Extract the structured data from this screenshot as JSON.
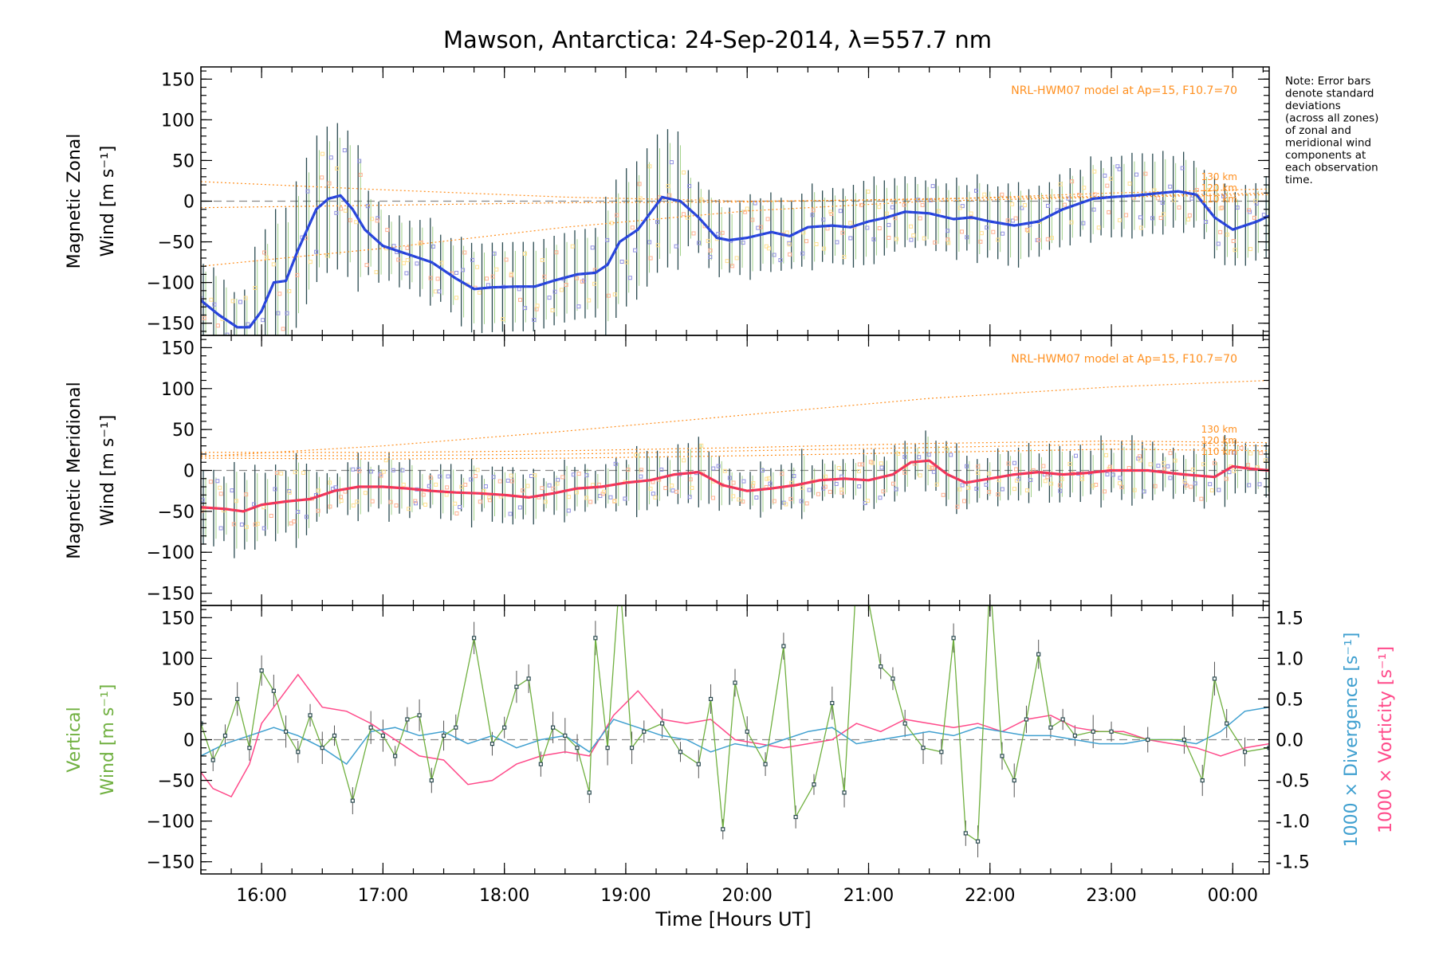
{
  "figure": {
    "title": "Mawson, Antarctica: 24-Sep-2014, λ=557.7 nm",
    "note_lines": [
      "Note: Error bars",
      "denote standard",
      "deviations",
      "(across all zones)",
      "of zonal and",
      "meridional wind",
      "components at",
      "each observation",
      "time."
    ],
    "model_label": "NRL-HWM07 model at Ap=15, F10.7=70",
    "altitude_labels": [
      "130 km",
      "120 km",
      "110 km"
    ],
    "xlabel": "Time [Hours UT]",
    "colors": {
      "zonal": "#2040e0",
      "meridional": "#ff3050",
      "vertical": "#70b040",
      "divergence": "#40a0d0",
      "vorticity": "#ff4a8a",
      "model": "#ff9020",
      "zone_points": "#9090e0"
    }
  },
  "chart_data": [
    {
      "type": "line",
      "panel": "zonal",
      "ylabel_line1": "Magnetic Zonal",
      "ylabel_line2": "Wind [m s⁻¹]",
      "xlim": [
        15.5,
        24.3
      ],
      "ylim": [
        -165,
        165
      ],
      "x_ticks": [
        16,
        17,
        18,
        19,
        20,
        21,
        22,
        23,
        24
      ],
      "x_tick_labels": [
        "16:00",
        "17:00",
        "18:00",
        "19:00",
        "20:00",
        "21:00",
        "22:00",
        "23:00",
        "00:00"
      ],
      "y_ticks": [
        -150,
        -100,
        -50,
        0,
        50,
        100,
        150
      ],
      "series": [
        {
          "role": "wind",
          "x": [
            15.5,
            15.65,
            15.8,
            15.9,
            16.0,
            16.1,
            16.2,
            16.3,
            16.45,
            16.55,
            16.65,
            16.75,
            16.85,
            17.0,
            17.2,
            17.4,
            17.6,
            17.75,
            17.9,
            18.1,
            18.25,
            18.4,
            18.6,
            18.75,
            18.85,
            18.95,
            19.1,
            19.2,
            19.3,
            19.45,
            19.6,
            19.75,
            19.85,
            20.0,
            20.2,
            20.35,
            20.5,
            20.7,
            20.85,
            21.0,
            21.15,
            21.3,
            21.5,
            21.7,
            21.85,
            22.0,
            22.2,
            22.4,
            22.6,
            22.85,
            23.0,
            23.2,
            23.4,
            23.55,
            23.7,
            23.85,
            24.0,
            24.2,
            24.3
          ],
          "y": [
            -122,
            -140,
            -155,
            -155,
            -135,
            -100,
            -98,
            -60,
            -10,
            3,
            7,
            -10,
            -35,
            -55,
            -65,
            -75,
            -95,
            -108,
            -106,
            -105,
            -105,
            -98,
            -90,
            -88,
            -78,
            -50,
            -35,
            -15,
            5,
            0,
            -20,
            -45,
            -48,
            -45,
            -38,
            -43,
            -32,
            -30,
            -32,
            -25,
            -20,
            -13,
            -15,
            -22,
            -20,
            -25,
            -30,
            -25,
            -10,
            3,
            5,
            7,
            10,
            12,
            8,
            -20,
            -35,
            -25,
            -18
          ]
        },
        {
          "role": "model",
          "name": "130 km",
          "x": [
            15.5,
            17.0,
            18.5,
            20.0,
            21.5,
            23.0,
            24.3
          ],
          "y": [
            24,
            14,
            5,
            0,
            2,
            10,
            15
          ]
        },
        {
          "role": "model",
          "name": "120 km",
          "x": [
            15.5,
            17.0,
            18.5,
            20.0,
            21.5,
            23.0,
            24.3
          ],
          "y": [
            -8,
            -5,
            -2,
            -1,
            3,
            6,
            10
          ]
        },
        {
          "role": "model",
          "name": "110 km",
          "x": [
            15.5,
            17.0,
            18.5,
            20.0,
            21.5,
            23.0,
            24.3
          ],
          "y": [
            -80,
            -58,
            -32,
            -12,
            0,
            5,
            8
          ]
        }
      ]
    },
    {
      "type": "line",
      "panel": "meridional",
      "ylabel_line1": "Magnetic Meridional",
      "ylabel_line2": "Wind [m s⁻¹]",
      "xlim": [
        15.5,
        24.3
      ],
      "ylim": [
        -165,
        165
      ],
      "x_ticks": [
        16,
        17,
        18,
        19,
        20,
        21,
        22,
        23,
        24
      ],
      "y_ticks": [
        -150,
        -100,
        -50,
        0,
        50,
        100,
        150
      ],
      "series": [
        {
          "role": "wind",
          "x": [
            15.5,
            15.7,
            15.85,
            16.0,
            16.2,
            16.4,
            16.6,
            16.8,
            17.0,
            17.2,
            17.4,
            17.6,
            17.8,
            18.0,
            18.2,
            18.4,
            18.6,
            18.8,
            19.0,
            19.2,
            19.4,
            19.6,
            19.8,
            20.0,
            20.2,
            20.4,
            20.6,
            20.8,
            21.0,
            21.2,
            21.35,
            21.5,
            21.65,
            21.8,
            22.0,
            22.2,
            22.4,
            22.6,
            22.8,
            23.0,
            23.3,
            23.6,
            23.85,
            24.0,
            24.15,
            24.3
          ],
          "y": [
            -45,
            -47,
            -50,
            -42,
            -38,
            -35,
            -25,
            -20,
            -20,
            -22,
            -25,
            -27,
            -28,
            -30,
            -33,
            -28,
            -22,
            -20,
            -15,
            -12,
            -5,
            -2,
            -18,
            -25,
            -22,
            -18,
            -12,
            -10,
            -12,
            -5,
            10,
            12,
            -5,
            -15,
            -10,
            -5,
            -2,
            -5,
            -3,
            0,
            0,
            -5,
            -8,
            5,
            2,
            0
          ]
        },
        {
          "role": "model",
          "name": "top",
          "x": [
            15.5,
            17.0,
            18.5,
            20.0,
            21.5,
            23.0,
            24.3
          ],
          "y": [
            17,
            30,
            48,
            68,
            88,
            102,
            110
          ]
        },
        {
          "role": "model",
          "name": "130 km",
          "x": [
            15.5,
            17.0,
            18.5,
            20.0,
            21.5,
            23.0,
            24.3
          ],
          "y": [
            22,
            22,
            24,
            28,
            33,
            36,
            34
          ]
        },
        {
          "role": "model",
          "name": "120 km",
          "x": [
            15.5,
            17.0,
            18.5,
            20.0,
            21.5,
            23.0,
            24.3
          ],
          "y": [
            18,
            18,
            20,
            24,
            28,
            32,
            30
          ]
        },
        {
          "role": "model",
          "name": "110 km",
          "x": [
            15.5,
            17.0,
            18.5,
            20.0,
            21.5,
            23.0,
            24.3
          ],
          "y": [
            15,
            14,
            15,
            18,
            22,
            26,
            24
          ]
        }
      ]
    },
    {
      "type": "line",
      "panel": "vertical",
      "ylabel_line1": "Vertical",
      "ylabel_line2": "Wind [m s⁻¹]",
      "y2label_div": "1000 × Divergence [s⁻¹]",
      "y2label_vort": "1000 × Vorticity [s⁻¹]",
      "xlim": [
        15.5,
        24.3
      ],
      "ylim": [
        -165,
        165
      ],
      "y2lim": [
        -1.65,
        1.65
      ],
      "x_ticks": [
        16,
        17,
        18,
        19,
        20,
        21,
        22,
        23,
        24
      ],
      "x_tick_labels": [
        "16:00",
        "17:00",
        "18:00",
        "19:00",
        "20:00",
        "21:00",
        "22:00",
        "23:00",
        "00:00"
      ],
      "y_ticks": [
        -150,
        -100,
        -50,
        0,
        50,
        100,
        150
      ],
      "y2_ticks": [
        -1.5,
        -1.0,
        -0.5,
        0.0,
        0.5,
        1.0,
        1.5
      ],
      "series": [
        {
          "role": "vertical",
          "name": "Vertical Wind",
          "x": [
            15.5,
            15.6,
            15.7,
            15.8,
            15.9,
            16.0,
            16.1,
            16.2,
            16.3,
            16.4,
            16.5,
            16.6,
            16.75,
            16.9,
            17.0,
            17.1,
            17.2,
            17.3,
            17.4,
            17.5,
            17.6,
            17.75,
            17.9,
            18.0,
            18.1,
            18.2,
            18.3,
            18.4,
            18.5,
            18.6,
            18.7,
            18.75,
            18.85,
            18.95,
            19.05,
            19.15,
            19.3,
            19.45,
            19.6,
            19.7,
            19.8,
            19.9,
            20.0,
            20.15,
            20.3,
            20.4,
            20.55,
            20.7,
            20.8,
            20.9,
            21.0,
            21.1,
            21.2,
            21.3,
            21.45,
            21.6,
            21.7,
            21.8,
            21.9,
            22.0,
            22.1,
            22.2,
            22.3,
            22.4,
            22.5,
            22.6,
            22.7,
            22.85,
            23.0,
            23.3,
            23.6,
            23.75,
            23.85,
            23.95,
            24.1,
            24.3
          ],
          "y": [
            20,
            -25,
            5,
            50,
            -10,
            85,
            60,
            10,
            -15,
            30,
            -10,
            5,
            -75,
            15,
            5,
            -20,
            25,
            30,
            -50,
            5,
            15,
            125,
            -5,
            15,
            65,
            75,
            -30,
            15,
            5,
            -10,
            -65,
            125,
            -10,
            200,
            -10,
            10,
            20,
            -15,
            -30,
            50,
            -110,
            70,
            10,
            -30,
            115,
            -95,
            -55,
            45,
            -65,
            200,
            170,
            90,
            75,
            20,
            -10,
            -15,
            125,
            -115,
            -125,
            200,
            -20,
            -50,
            25,
            105,
            15,
            25,
            5,
            10,
            10,
            0,
            0,
            -50,
            75,
            20,
            -15,
            -10
          ]
        },
        {
          "role": "divergence",
          "name": "Divergence",
          "x": [
            15.5,
            15.7,
            15.9,
            16.1,
            16.3,
            16.5,
            16.7,
            16.9,
            17.1,
            17.3,
            17.5,
            17.7,
            17.9,
            18.1,
            18.3,
            18.5,
            18.7,
            18.9,
            19.1,
            19.3,
            19.5,
            19.7,
            19.9,
            20.1,
            20.3,
            20.5,
            20.7,
            20.9,
            21.1,
            21.3,
            21.5,
            21.7,
            21.9,
            22.1,
            22.3,
            22.5,
            22.7,
            22.9,
            23.1,
            23.3,
            23.5,
            23.7,
            23.9,
            24.1,
            24.3
          ],
          "y": [
            -0.2,
            -0.05,
            0.05,
            0.15,
            0.05,
            -0.1,
            -0.3,
            0.1,
            0.15,
            0.05,
            0.1,
            -0.05,
            0.05,
            -0.1,
            0.0,
            0.05,
            -0.15,
            0.25,
            0.15,
            0.05,
            0.0,
            -0.15,
            -0.05,
            -0.1,
            0.0,
            0.1,
            0.15,
            -0.05,
            0.0,
            0.05,
            0.1,
            0.05,
            0.15,
            0.1,
            0.05,
            0.05,
            0.0,
            -0.05,
            -0.05,
            0.0,
            0.0,
            -0.05,
            0.1,
            0.35,
            0.4
          ]
        },
        {
          "role": "vorticity",
          "name": "Vorticity",
          "x": [
            15.5,
            15.6,
            15.75,
            15.9,
            16.0,
            16.1,
            16.2,
            16.3,
            16.5,
            16.7,
            16.9,
            17.1,
            17.3,
            17.5,
            17.7,
            17.9,
            18.1,
            18.3,
            18.5,
            18.7,
            18.9,
            19.1,
            19.3,
            19.5,
            19.7,
            19.9,
            20.1,
            20.3,
            20.5,
            20.7,
            20.9,
            21.1,
            21.3,
            21.5,
            21.7,
            21.9,
            22.1,
            22.3,
            22.5,
            22.7,
            22.9,
            23.1,
            23.3,
            23.5,
            23.7,
            23.9,
            24.1,
            24.3
          ],
          "y": [
            -0.4,
            -0.6,
            -0.7,
            -0.3,
            0.2,
            0.4,
            0.6,
            0.8,
            0.4,
            0.35,
            0.2,
            0.0,
            -0.2,
            -0.25,
            -0.55,
            -0.5,
            -0.3,
            -0.2,
            -0.15,
            -0.2,
            0.3,
            0.6,
            0.25,
            0.2,
            0.25,
            0.0,
            -0.05,
            -0.1,
            -0.05,
            0.0,
            0.2,
            0.1,
            0.25,
            0.2,
            0.15,
            0.2,
            0.1,
            0.25,
            0.3,
            0.15,
            0.1,
            0.1,
            0.0,
            -0.05,
            -0.1,
            -0.2,
            -0.1,
            -0.05
          ]
        }
      ]
    }
  ]
}
